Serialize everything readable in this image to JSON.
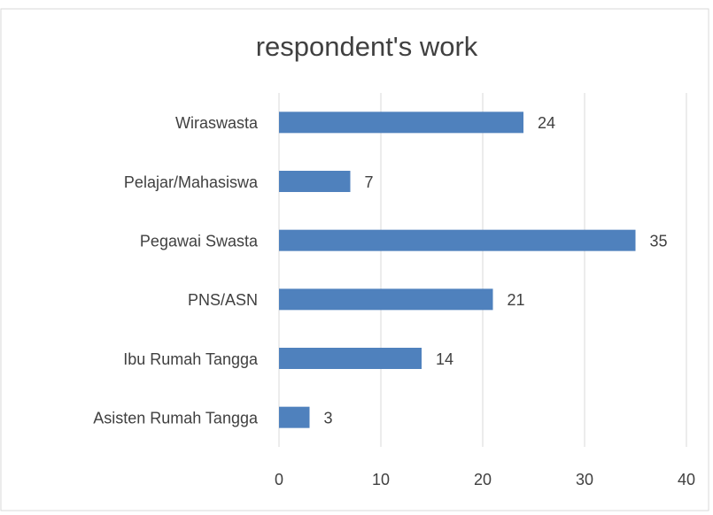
{
  "chart_data": {
    "type": "bar",
    "orientation": "horizontal",
    "title": "respondent's work",
    "categories": [
      "Wiraswasta",
      "Pelajar/Mahasiswa",
      "Pegawai Swasta",
      "PNS/ASN",
      "Ibu Rumah Tangga",
      "Asisten Rumah Tangga"
    ],
    "values": [
      24,
      7,
      35,
      21,
      14,
      3
    ],
    "color": "#4f81bd",
    "xlim": [
      0,
      40
    ],
    "xticks": [
      0,
      10,
      20,
      30,
      40
    ],
    "grid": true
  }
}
